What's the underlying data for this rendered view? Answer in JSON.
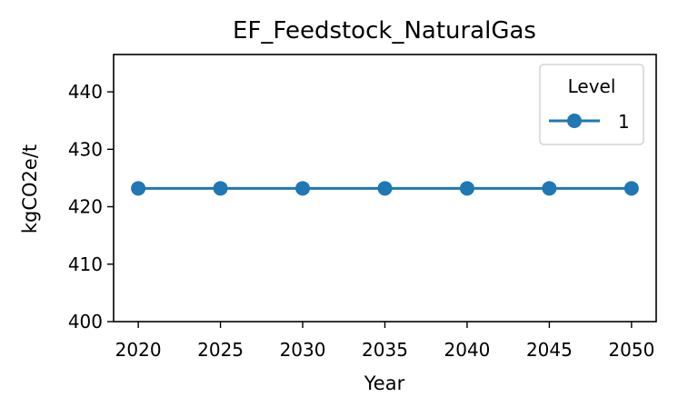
{
  "chart_data": {
    "type": "line",
    "title": "EF_Feedstock_NaturalGas",
    "xlabel": "Year",
    "ylabel": "kgCO2e/t",
    "x": [
      2020,
      2025,
      2030,
      2035,
      2040,
      2045,
      2050
    ],
    "xticks": [
      "2020",
      "2025",
      "2030",
      "2035",
      "2040",
      "2045",
      "2050"
    ],
    "yticks": [
      "400",
      "410",
      "420",
      "430",
      "440"
    ],
    "ylim": [
      400,
      446.5
    ],
    "xlim": [
      2018.5,
      2051.5
    ],
    "grid": false,
    "legend": {
      "title": "Level",
      "placement": "top-right"
    },
    "series": [
      {
        "name": "1",
        "color": "#1f77b4",
        "marker": "circle",
        "values": [
          423.2,
          423.2,
          423.2,
          423.2,
          423.2,
          423.2,
          423.2
        ]
      }
    ]
  }
}
